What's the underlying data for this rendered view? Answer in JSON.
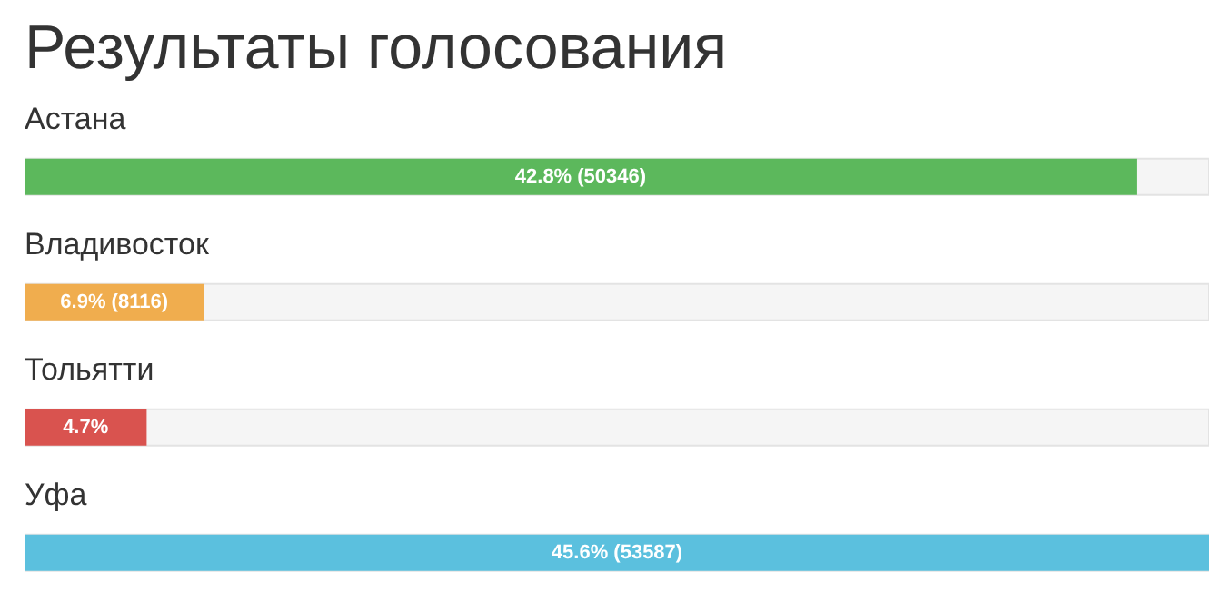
{
  "chart_data": {
    "type": "bar",
    "orientation": "horizontal",
    "title": "Результаты голосования",
    "categories": [
      "Астана",
      "Владивосток",
      "Тольятти",
      "Уфа"
    ],
    "values": [
      42.8,
      6.9,
      4.7,
      45.6
    ],
    "colors": [
      "#5cb85c",
      "#f0ad4e",
      "#d9534f",
      "#5bc0de"
    ],
    "value_labels": [
      "42.8% (50346)",
      "6.9% (8116)",
      "4.7%",
      "45.6% (53587)"
    ],
    "xlim": [
      0,
      45.6
    ]
  }
}
